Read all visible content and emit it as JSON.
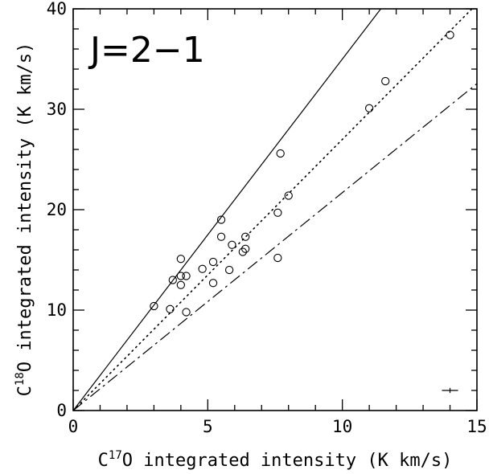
{
  "chart_data": {
    "type": "scatter",
    "annotation": "J=2−1",
    "xlabel": {
      "prefix": "C",
      "sup": "17",
      "rest": "O integrated intensity (K km/s)"
    },
    "ylabel": {
      "prefix": "C",
      "sup": "18",
      "rest": "O integrated intensity (K km/s)"
    },
    "xlim": [
      0,
      15
    ],
    "ylim": [
      0,
      40
    ],
    "xticks": [
      0,
      5,
      10,
      15
    ],
    "yticks": [
      0,
      10,
      20,
      30,
      40
    ],
    "x_minor_step": 1,
    "y_minor_step": 2,
    "points": [
      {
        "x": 3.0,
        "y": 10.4
      },
      {
        "x": 3.6,
        "y": 10.1
      },
      {
        "x": 3.7,
        "y": 13.0
      },
      {
        "x": 4.0,
        "y": 15.1
      },
      {
        "x": 4.0,
        "y": 13.4
      },
      {
        "x": 4.0,
        "y": 12.5
      },
      {
        "x": 4.2,
        "y": 13.4
      },
      {
        "x": 4.2,
        "y": 9.8
      },
      {
        "x": 4.8,
        "y": 14.1
      },
      {
        "x": 5.2,
        "y": 14.8
      },
      {
        "x": 5.2,
        "y": 12.7
      },
      {
        "x": 5.5,
        "y": 19.0
      },
      {
        "x": 5.5,
        "y": 17.3
      },
      {
        "x": 5.8,
        "y": 14.0
      },
      {
        "x": 5.9,
        "y": 16.5
      },
      {
        "x": 6.3,
        "y": 15.8
      },
      {
        "x": 6.4,
        "y": 16.1
      },
      {
        "x": 6.4,
        "y": 17.3
      },
      {
        "x": 7.6,
        "y": 15.2
      },
      {
        "x": 7.6,
        "y": 19.7
      },
      {
        "x": 7.7,
        "y": 25.6
      },
      {
        "x": 8.0,
        "y": 21.4
      },
      {
        "x": 11.0,
        "y": 30.1
      },
      {
        "x": 11.6,
        "y": 32.8
      },
      {
        "x": 14.0,
        "y": 37.4
      }
    ],
    "lines": [
      {
        "style": "solid",
        "slope": 3.5
      },
      {
        "style": "dotted",
        "slope": 2.7
      },
      {
        "style": "dash-dot",
        "slope": 2.17
      }
    ],
    "error_bar": {
      "x": 14.0,
      "y": 2.0,
      "x_err": 0.3,
      "y_err": 0.25
    }
  }
}
